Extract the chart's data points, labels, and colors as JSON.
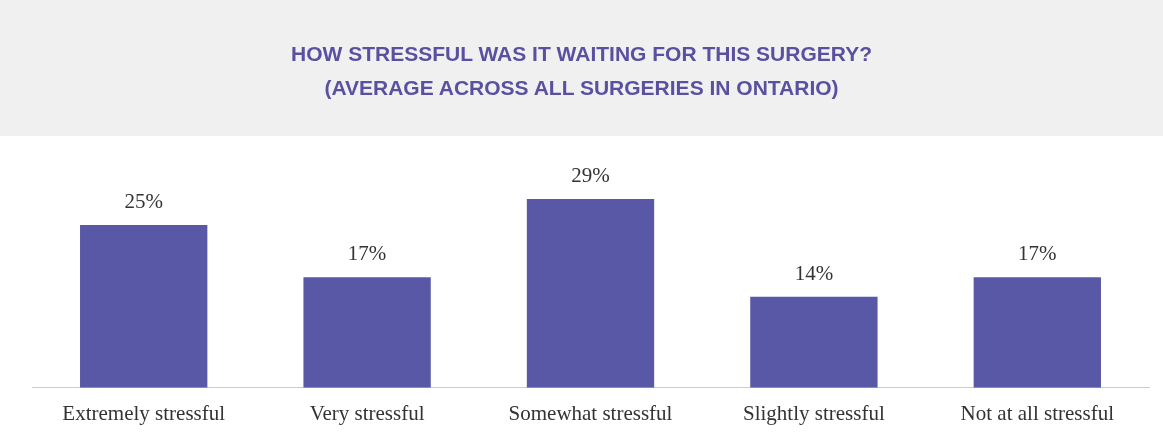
{
  "chart_data": {
    "type": "bar",
    "title": "HOW STRESSFUL WAS IT WAITING FOR THIS SURGERY?",
    "subtitle": "(AVERAGE ACROSS ALL SURGERIES IN ONTARIO)",
    "categories": [
      "Extremely stressful",
      "Very stressful",
      "Somewhat stressful",
      "Slightly stressful",
      "Not at all stressful"
    ],
    "values": [
      25,
      17,
      29,
      14,
      17
    ],
    "value_labels": [
      "25%",
      "17%",
      "29%",
      "14%",
      "17%"
    ],
    "color": "#5858a6",
    "grid": false,
    "legend": false,
    "tick_labels": "x"
  }
}
